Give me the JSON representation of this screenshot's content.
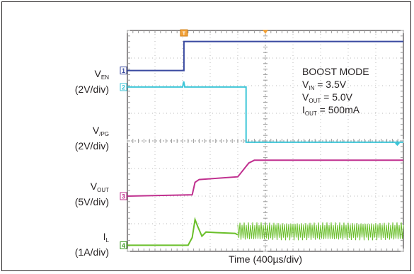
{
  "chart_data": {
    "type": "line",
    "title": "",
    "xlabel": "Time (400µs/div)",
    "grid": true,
    "x_divisions": 10,
    "y_divisions": 8,
    "trigger_marker": "T",
    "channels": [
      {
        "id": "1",
        "label_main": "V",
        "label_sub": "EN",
        "scale": "(2V/div)",
        "color": "#3a4aa0",
        "marker_color": "#3a4aa0",
        "x_div": [
          0,
          2.05,
          2.05,
          10
        ],
        "y_div": [
          6.55,
          6.55,
          7.6,
          7.6
        ]
      },
      {
        "id": "2",
        "label_main": "V",
        "label_sub": "/PG",
        "scale": "(2V/div)",
        "color": "#3ec6d8",
        "marker_color": "#3ec6d8",
        "x_div": [
          0,
          2.0,
          2.04,
          2.08,
          4.3,
          4.3,
          10
        ],
        "y_div": [
          5.95,
          5.95,
          6.15,
          5.95,
          5.95,
          3.95,
          3.95
        ],
        "end_arrow": true
      },
      {
        "id": "3",
        "label_main": "V",
        "label_sub": "OUT",
        "scale": "(5V/div)",
        "color": "#c0308f",
        "marker_color": "#c0308f",
        "x_div": [
          0,
          2.35,
          2.45,
          2.6,
          4.0,
          4.4,
          4.6,
          10
        ],
        "y_div": [
          2.0,
          2.05,
          2.5,
          2.6,
          2.7,
          3.2,
          3.3,
          3.3
        ]
      },
      {
        "id": "4",
        "label_main": "I",
        "label_sub": "L",
        "scale": "(1A/div)",
        "color": "#6abf2a",
        "marker_color": "#3a9a20",
        "x_div": [
          0,
          2.2,
          2.35,
          2.45,
          2.55,
          2.7,
          2.85,
          3.2,
          3.9,
          4.0
        ],
        "y_div": [
          0.22,
          0.22,
          0.5,
          1.15,
          0.9,
          0.55,
          0.7,
          0.68,
          0.65,
          0.6
        ],
        "noise_start": 4.0,
        "noise_low": 0.4,
        "noise_high": 1.05
      }
    ],
    "annotation_lines": [
      {
        "main": "BOOST MODE",
        "sub": "",
        "rest": ""
      },
      {
        "main": "V",
        "sub": "IN",
        "rest": " = 3.5V"
      },
      {
        "main": "V",
        "sub": "OUT",
        "rest": " = 5.0V"
      },
      {
        "main": "I",
        "sub": "OUT",
        "rest": " = 500mA"
      }
    ]
  }
}
